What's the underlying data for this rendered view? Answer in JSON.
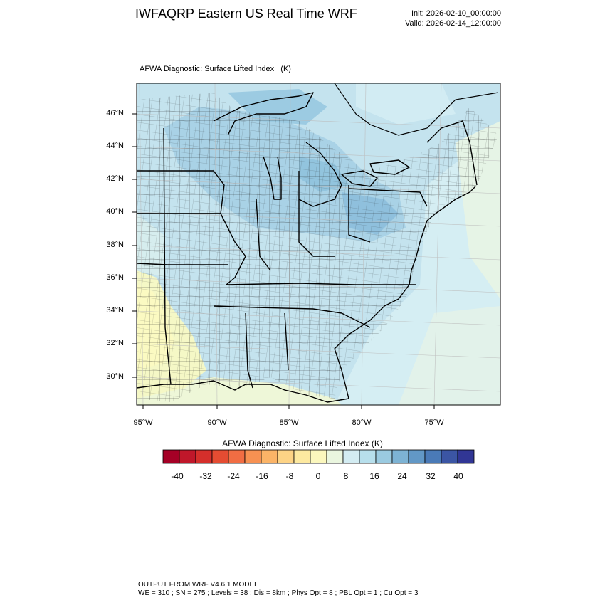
{
  "header": {
    "title": "IWFAQRP Eastern US Real Time WRF",
    "init": "Init: 2026-02-10_00:00:00",
    "valid": "Valid: 2026-02-14_12:00:00"
  },
  "plot": {
    "title": "AFWA Diagnostic: Surface Lifted Index   (K)",
    "lat_labels": [
      "46°N",
      "44°N",
      "42°N",
      "40°N",
      "38°N",
      "36°N",
      "34°N",
      "32°N",
      "30°N"
    ],
    "lon_labels": [
      "95°W",
      "90°W",
      "85°W",
      "80°W",
      "75°W"
    ]
  },
  "colorbar": {
    "title": "AFWA Diagnostic: Surface Lifted Index  (K)",
    "labels": [
      "-40",
      "-32",
      "-24",
      "-16",
      "-8",
      "0",
      "8",
      "16",
      "24",
      "32",
      "40"
    ],
    "colors": [
      "#a50026",
      "#c0172a",
      "#d52f2b",
      "#e54c32",
      "#f16d43",
      "#f79152",
      "#fbb467",
      "#fdd385",
      "#fde9a0",
      "#fbf7bd",
      "#eaf6df",
      "#d3ecf2",
      "#b7dfec",
      "#9acae0",
      "#7db3d4",
      "#6298c6",
      "#4a7ab7",
      "#3b55a4",
      "#313695"
    ]
  },
  "footer": {
    "line1": "OUTPUT FROM WRF V4.6.1 MODEL",
    "line2": "WE = 310 ; SN = 275 ; Levels = 38 ; Dis = 8km ; Phys Opt = 8 ; PBL Opt = 1 ; Cu Opt = 3"
  }
}
